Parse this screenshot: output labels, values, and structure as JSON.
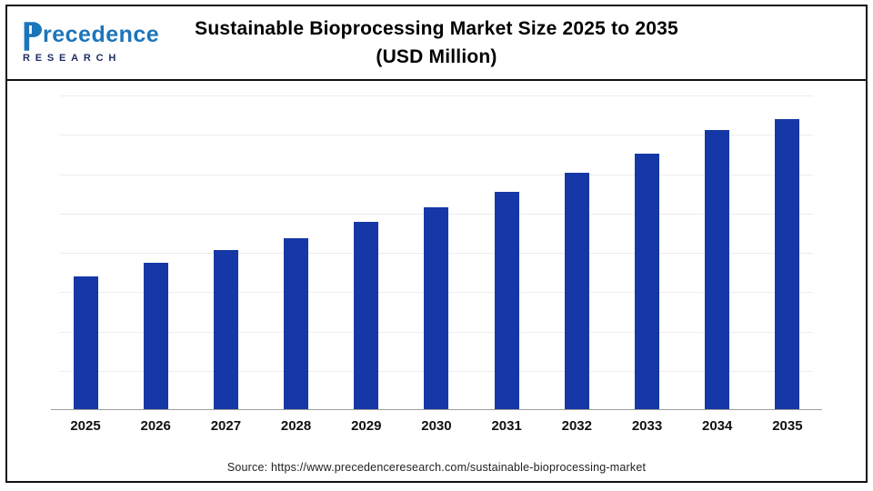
{
  "header": {
    "title_line1": "Sustainable Bioprocessing Market Size 2025 to 2035",
    "title_line2": "(USD Million)"
  },
  "logo": {
    "name_rest": "recedence",
    "subtitle": "RESEARCH"
  },
  "footer": {
    "source": "Source: https://www.precedenceresearch.com/sustainable-bioprocessing-market"
  },
  "colors": {
    "bar": "#1638A6",
    "logo_blue": "#1B75BB",
    "logo_navy": "#1F2E63"
  },
  "chart_data": {
    "type": "bar",
    "title": "Sustainable Bioprocessing Market Size 2025 to 2035 (USD Million)",
    "categories": [
      "2025",
      "2026",
      "2027",
      "2028",
      "2029",
      "2030",
      "2031",
      "2032",
      "2033",
      "2034",
      "2035"
    ],
    "values": [
      46,
      50.5,
      55,
      59,
      64.5,
      69.5,
      75,
      81.5,
      88,
      96,
      100
    ],
    "units": "relative estimate (y-axis unlabeled in image; 2035 = 100)",
    "xlabel": "",
    "ylabel": "",
    "ylim": [
      0,
      108
    ],
    "gridlines": true,
    "grid_divisions": 8,
    "legend": "none",
    "bar_color": "#1638A6"
  }
}
